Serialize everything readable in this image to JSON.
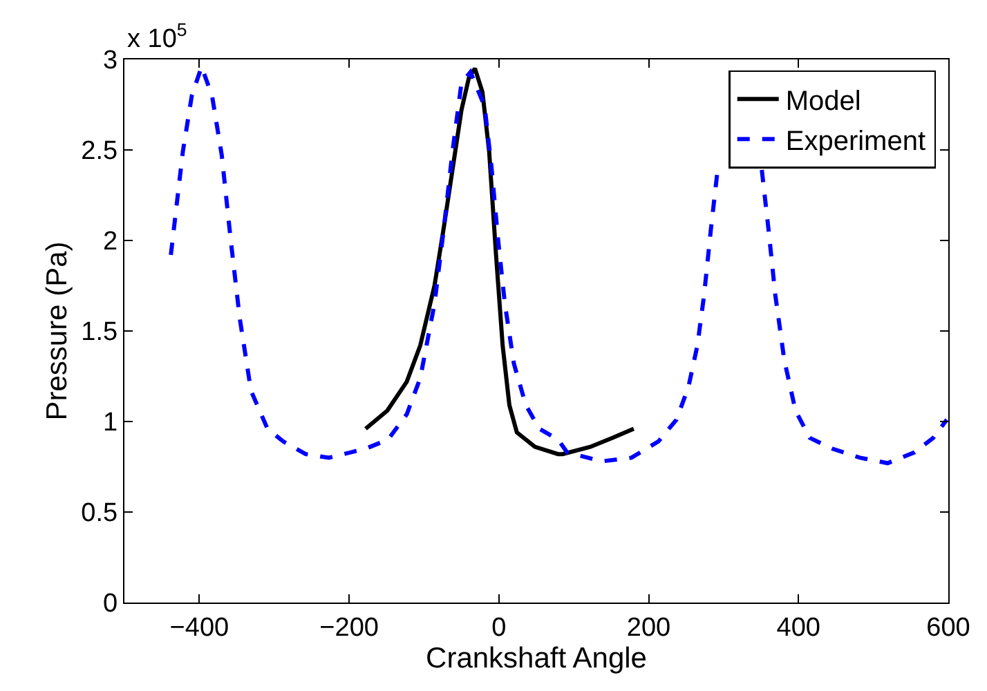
{
  "chart_data": {
    "type": "line",
    "xlabel": "Crankshaft Angle",
    "ylabel": "Pressure (Pa)",
    "annotations": [
      "x 10$^{5}$"
    ],
    "xlim": [
      -500,
      600
    ],
    "xticks": [
      {
        "value": -400,
        "label": "−400"
      },
      {
        "value": -200,
        "label": "−200"
      },
      0,
      200,
      400,
      600
    ],
    "ylim": [
      0,
      3
    ],
    "yticks": [
      0,
      0.5,
      1,
      1.5,
      2,
      2.5,
      3
    ],
    "grid": false,
    "legend": "top right",
    "marker": "none",
    "series": [
      {
        "name": "Model",
        "color": "#000000",
        "line_style": "solid",
        "x": [
          -178,
          -149,
          -123,
          -105,
          -86,
          -74,
          -62,
          -50,
          -40,
          -32,
          -22,
          -13,
          -4,
          5,
          14,
          24,
          48,
          79,
          85,
          122,
          152,
          180
        ],
        "values": [
          0.96,
          1.06,
          1.22,
          1.42,
          1.75,
          2.06,
          2.39,
          2.72,
          2.9,
          2.95,
          2.82,
          2.49,
          1.93,
          1.42,
          1.09,
          0.94,
          0.86,
          0.82,
          0.82,
          0.86,
          0.91,
          0.96
        ]
      },
      {
        "name": "Experiment",
        "color": "#0000ff",
        "line_style": "dashed",
        "x": [
          -438,
          -422,
          -410,
          -397,
          -383,
          -370,
          -358,
          -346,
          -331,
          -309,
          -288,
          -258,
          -227,
          -178,
          -148,
          -123,
          -105,
          -86,
          -74,
          -62,
          -50,
          -38,
          -19,
          -10,
          -1,
          8,
          20,
          36,
          54,
          79,
          91,
          137,
          177,
          213,
          237,
          253,
          265,
          274,
          283,
          292,
          305,
          323,
          341,
          351,
          360,
          369,
          381,
          396,
          415,
          445,
          482,
          519,
          555,
          580,
          598
        ],
        "values": [
          1.92,
          2.49,
          2.8,
          2.96,
          2.8,
          2.47,
          2.0,
          1.57,
          1.17,
          0.96,
          0.89,
          0.82,
          0.8,
          0.85,
          0.9,
          1.04,
          1.24,
          1.65,
          2.05,
          2.49,
          2.87,
          2.93,
          2.74,
          2.41,
          2.0,
          1.65,
          1.32,
          1.09,
          0.96,
          0.9,
          0.83,
          0.78,
          0.8,
          0.89,
          1.01,
          1.19,
          1.42,
          1.7,
          2.06,
          2.39,
          null,
          null,
          null,
          2.39,
          2.06,
          1.7,
          1.34,
          1.06,
          0.91,
          0.85,
          0.8,
          0.77,
          0.83,
          0.91,
          1.01
        ]
      }
    ]
  }
}
